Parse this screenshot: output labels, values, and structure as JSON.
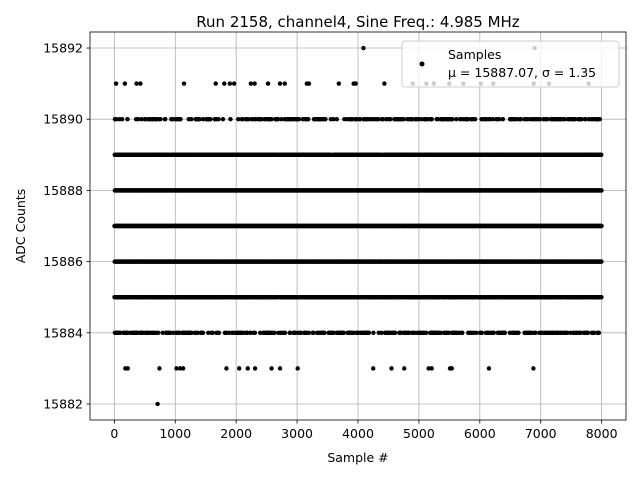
{
  "chart_data": {
    "type": "scatter",
    "title": "Run 2158, channel4, Sine Freq.: 4.985 MHz",
    "xlabel": "Sample #",
    "ylabel": "ADC Counts",
    "xlim": [
      -400,
      8400
    ],
    "ylim": [
      15881.55,
      15892.45
    ],
    "xticks": [
      0,
      1000,
      2000,
      3000,
      4000,
      5000,
      6000,
      7000,
      8000
    ],
    "yticks": [
      15882,
      15884,
      15886,
      15888,
      15890,
      15892
    ],
    "grid": true,
    "marker_color": "#000000",
    "n_samples": 8000,
    "legend": {
      "placement": "top-right",
      "entries": [
        {
          "name": "Samples",
          "stats": "μ = 15887.07, σ = 1.35"
        }
      ]
    },
    "level_density": [
      {
        "y": 15892,
        "points": [
          4090,
          6900
        ]
      },
      {
        "y": 15891,
        "density": 0.02
      },
      {
        "y": 15890,
        "density": 0.3
      },
      {
        "y": 15889,
        "density": 0.85
      },
      {
        "y": 15888,
        "density": 1.0
      },
      {
        "y": 15887,
        "density": 1.0
      },
      {
        "y": 15886,
        "density": 1.0
      },
      {
        "y": 15885,
        "density": 0.85
      },
      {
        "y": 15884,
        "density": 0.3
      },
      {
        "y": 15883,
        "points": [
          180,
          220,
          740,
          1020,
          1080,
          1130,
          1840,
          2050,
          2190,
          2310,
          2580,
          2720,
          3010,
          4250,
          4550,
          4760,
          5160,
          5210,
          5510,
          5540,
          6150,
          6880
        ]
      },
      {
        "y": 15882,
        "points": [
          710
        ]
      }
    ]
  }
}
